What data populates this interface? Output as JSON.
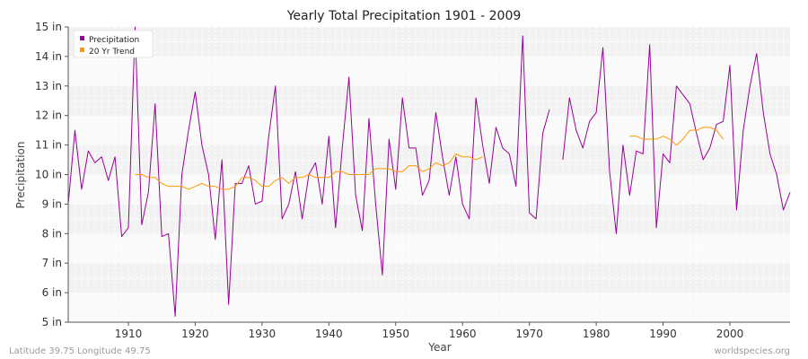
{
  "chart_data": {
    "type": "line",
    "title": "Yearly Total Precipitation 1901 - 2009",
    "xlabel": "Year",
    "ylabel": "Precipitation",
    "xlim": [
      1901,
      2009
    ],
    "ylim": [
      5,
      15
    ],
    "y_ticks": [
      5,
      6,
      7,
      8,
      9,
      10,
      11,
      12,
      13,
      14,
      15
    ],
    "y_tick_labels": [
      "5 in",
      "6 in",
      "7 in",
      "8 in",
      "9 in",
      "10 in",
      "11 in",
      "12 in",
      "13 in",
      "14 in",
      "15 in"
    ],
    "x_ticks": [
      1910,
      1920,
      1930,
      1940,
      1950,
      1960,
      1970,
      1980,
      1990,
      2000
    ],
    "x_tick_labels": [
      "1910",
      "1920",
      "1930",
      "1940",
      "1950",
      "1960",
      "1970",
      "1980",
      "1990",
      "2000"
    ],
    "legend_position": "top-left",
    "series": [
      {
        "name": "Precipitation",
        "color": "#990099",
        "x": [
          1901,
          1902,
          1903,
          1904,
          1905,
          1906,
          1907,
          1908,
          1909,
          1910,
          1911,
          1912,
          1913,
          1914,
          1915,
          1916,
          1917,
          1918,
          1919,
          1920,
          1921,
          1922,
          1923,
          1924,
          1925,
          1926,
          1927,
          1928,
          1929,
          1930,
          1931,
          1932,
          1933,
          1934,
          1935,
          1936,
          1937,
          1938,
          1939,
          1940,
          1941,
          1942,
          1943,
          1944,
          1945,
          1946,
          1947,
          1948,
          1949,
          1950,
          1951,
          1952,
          1953,
          1954,
          1955,
          1956,
          1957,
          1958,
          1959,
          1960,
          1961,
          1962,
          1963,
          1964,
          1965,
          1966,
          1967,
          1968,
          1969,
          1970,
          1971,
          1972,
          1973,
          1974,
          1975,
          1976,
          1977,
          1978,
          1979,
          1980,
          1981,
          1982,
          1983,
          1984,
          1985,
          1986,
          1987,
          1988,
          1989,
          1990,
          1991,
          1992,
          1993,
          1994,
          1995,
          1996,
          1997,
          1998,
          1999,
          2000,
          2001,
          2002,
          2003,
          2004,
          2005,
          2006,
          2007,
          2008,
          2009
        ],
        "values": [
          9.0,
          11.5,
          9.5,
          10.8,
          10.4,
          10.6,
          9.8,
          10.6,
          7.9,
          8.2,
          15.0,
          8.3,
          9.4,
          12.4,
          7.9,
          8.0,
          5.2,
          10.0,
          11.5,
          12.8,
          11.0,
          10.0,
          7.8,
          10.5,
          5.6,
          9.7,
          9.7,
          10.3,
          9.0,
          9.1,
          11.3,
          13.0,
          8.5,
          9.0,
          10.1,
          8.5,
          10.0,
          10.4,
          9.0,
          11.3,
          8.2,
          10.9,
          13.3,
          9.3,
          8.1,
          11.9,
          9.0,
          6.6,
          11.2,
          9.5,
          12.6,
          10.9,
          10.9,
          9.3,
          9.8,
          12.1,
          10.6,
          9.3,
          10.6,
          9.0,
          8.5,
          12.6,
          11.0,
          9.7,
          11.6,
          10.9,
          10.7,
          9.6,
          14.7,
          8.7,
          8.5,
          11.4,
          12.2,
          null,
          10.5,
          12.6,
          11.5,
          10.9,
          11.8,
          12.1,
          14.3,
          10.1,
          8.0,
          11.0,
          9.3,
          10.8,
          10.7,
          14.4,
          8.2,
          10.7,
          10.4,
          13.0,
          12.7,
          12.4,
          11.4,
          10.5,
          10.9,
          11.7,
          11.8,
          13.7,
          8.8,
          11.5,
          13.0,
          14.1,
          12.1,
          10.7,
          10.0,
          8.8,
          9.4
        ]
      },
      {
        "name": "20 Yr Trend",
        "color": "#ff9900",
        "x": [
          1911,
          1912,
          1913,
          1914,
          1915,
          1916,
          1917,
          1918,
          1919,
          1920,
          1921,
          1922,
          1923,
          1924,
          1925,
          1926,
          1927,
          1928,
          1929,
          1930,
          1931,
          1932,
          1933,
          1934,
          1935,
          1936,
          1937,
          1938,
          1939,
          1940,
          1941,
          1942,
          1943,
          1944,
          1945,
          1946,
          1947,
          1948,
          1949,
          1950,
          1951,
          1952,
          1953,
          1954,
          1955,
          1956,
          1957,
          1958,
          1959,
          1960,
          1961,
          1962,
          1963,
          1964,
          1965,
          1966,
          1967,
          1968,
          1969,
          1970,
          1971,
          1972,
          1973,
          1974,
          1975,
          1976,
          1977,
          1978,
          1979,
          1980,
          1981,
          1982,
          1983,
          1984,
          1985,
          1986,
          1987,
          1988,
          1989,
          1990,
          1991,
          1992,
          1993,
          1994,
          1995,
          1996,
          1997,
          1998,
          1999
        ],
        "values": [
          10.0,
          10.0,
          9.9,
          9.9,
          9.7,
          9.6,
          9.6,
          9.6,
          9.5,
          9.6,
          9.7,
          9.6,
          9.6,
          9.5,
          9.5,
          9.6,
          9.9,
          9.9,
          9.8,
          9.6,
          9.6,
          9.8,
          9.9,
          9.7,
          9.9,
          9.9,
          10.0,
          9.9,
          9.9,
          9.9,
          10.1,
          10.1,
          10.0,
          10.0,
          10.0,
          10.0,
          10.2,
          10.2,
          10.2,
          10.1,
          10.1,
          10.3,
          10.3,
          10.1,
          10.2,
          10.4,
          10.3,
          10.4,
          10.7,
          10.6,
          10.6,
          10.5,
          10.6,
          null,
          null,
          null,
          null,
          null,
          null,
          null,
          null,
          null,
          null,
          null,
          null,
          null,
          null,
          null,
          null,
          null,
          null,
          null,
          null,
          null,
          11.3,
          11.3,
          11.2,
          11.2,
          11.2,
          11.3,
          11.2,
          11.0,
          11.2,
          11.5,
          11.5,
          11.6,
          11.6,
          11.5,
          11.2
        ]
      }
    ]
  },
  "footer": {
    "left": "Latitude 39.75 Longitude 49.75",
    "right": "worldspecies.org"
  }
}
